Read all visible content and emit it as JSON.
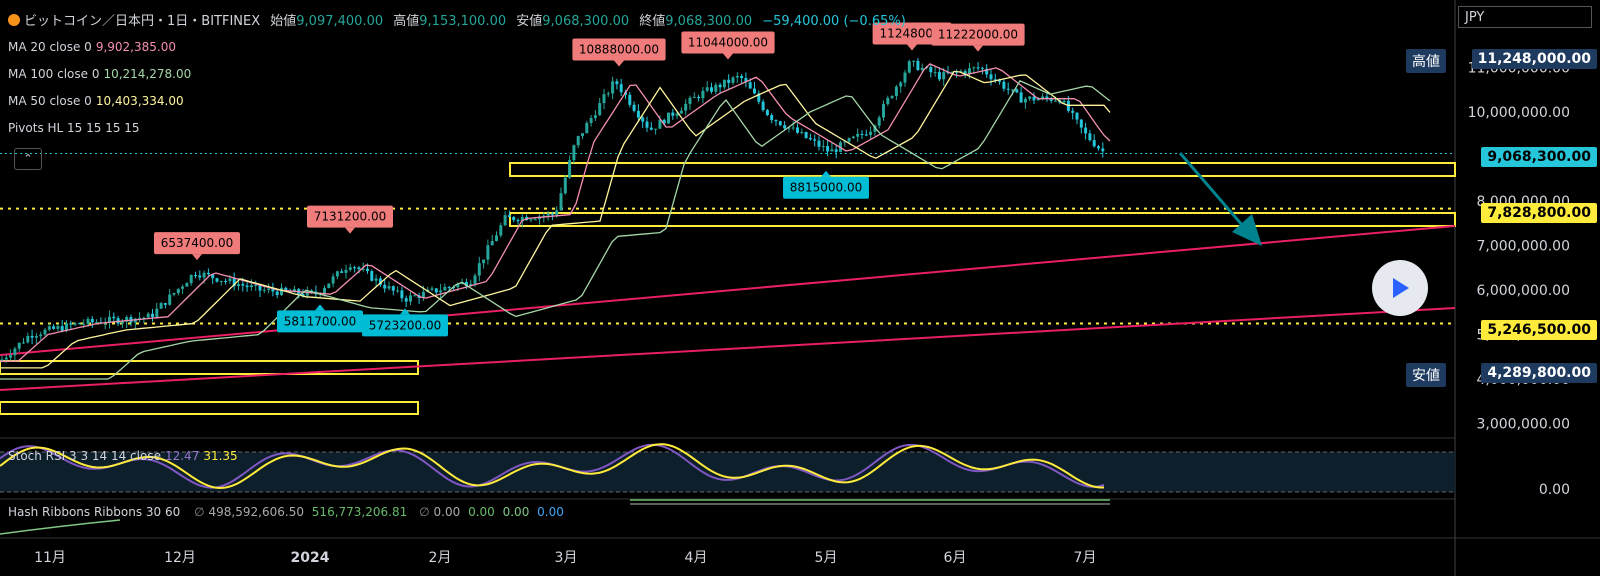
{
  "header": {
    "title": "ビットコイン／日本円・1日・BITFINEX",
    "open_label": "始値",
    "open": "9,097,400.00",
    "high_label": "高値",
    "high": "9,153,100.00",
    "low_label": "安値",
    "low": "9,068,300.00",
    "close_label": "終値",
    "close": "9,068,300.00",
    "change": "−59,400.00 (−0.65%)"
  },
  "indicators": [
    {
      "label": "MA 20 close 0",
      "value": "9,902,385.00",
      "color": "#f48fb1"
    },
    {
      "label": "MA 100 close 0",
      "value": "10,214,278.00",
      "color": "#81c784"
    },
    {
      "label": "MA 50 close 0",
      "value": "10,403,334.00",
      "color": "#fff59d"
    },
    {
      "label": "Pivots HL 15 15 15 15",
      "value": "",
      "color": "#d1d4dc"
    }
  ],
  "stoch": {
    "label": "Stoch RSI 3 3 14 14 close",
    "k": "12.47",
    "d": "31.35",
    "k_color": "#7e57c2",
    "d_color": "#ffeb3b"
  },
  "hash": {
    "label": "Hash Ribbons Ribbons 30 60",
    "sym": "∅",
    "v1": "498,592,606.50",
    "v2": "516,773,206.81",
    "v3": "0.00",
    "v4": "0.00",
    "v5": "0.00",
    "v6": "0.00"
  },
  "currency": "JPY",
  "price_axis": {
    "ticks": [
      "11,000,000.00",
      "10,000,000.00",
      "8,000,000.00",
      "7,000,000.00",
      "6,000,000.00",
      "5,000,000.00",
      "4,000,000.00",
      "3,000,000.00"
    ],
    "sub_ticks": [
      "0.00"
    ],
    "high_label": "高値",
    "high_value": "11,248,000.00",
    "low_label": "安値",
    "low_value": "4,289,800.00",
    "current": "9,068,300.00",
    "level1": "7,828,800.00",
    "level2": "5,246,500.00"
  },
  "time_axis": [
    "11月",
    "12月",
    "2024",
    "2月",
    "3月",
    "4月",
    "5月",
    "6月",
    "7月"
  ],
  "pivots_high": [
    "6537400.00",
    "7131200.00",
    "10888000.00",
    "11044000.00",
    "11248000.",
    "11222000.00"
  ],
  "pivots_low": [
    "5811700.00",
    "5723200.00",
    "8815000.00"
  ],
  "colors": {
    "up": "#26a69a",
    "down": "#26c6da",
    "pivot_high": "#f07b7b",
    "pivot_low": "#00bcd4",
    "zone": "#ffeb3b",
    "trend": "#e91e63",
    "current_line": "#26c6da"
  },
  "chart_data": {
    "type": "candlestick",
    "y_unit": "JPY",
    "ylim": [
      2800000,
      11700000
    ],
    "series": [
      {
        "name": "MA 20 close 0",
        "last": 9902385
      },
      {
        "name": "MA 100 close 0",
        "last": 10214278
      },
      {
        "name": "MA 50 close 0",
        "last": 10403334
      }
    ],
    "pivots": [
      {
        "type": "high",
        "value": 6537400
      },
      {
        "type": "high",
        "value": 7131200
      },
      {
        "type": "high",
        "value": 10888000
      },
      {
        "type": "high",
        "value": 11044000
      },
      {
        "type": "high",
        "value": 11248000
      },
      {
        "type": "high",
        "value": 11222000
      },
      {
        "type": "low",
        "value": 5811700
      },
      {
        "type": "low",
        "value": 5723200
      },
      {
        "type": "low",
        "value": 8815000
      }
    ],
    "horizontal_levels": [
      9068300,
      7828800,
      5246500
    ],
    "last_ohlc": {
      "open": 9097400,
      "high": 9153100,
      "low": 9068300,
      "close": 9068300
    }
  }
}
